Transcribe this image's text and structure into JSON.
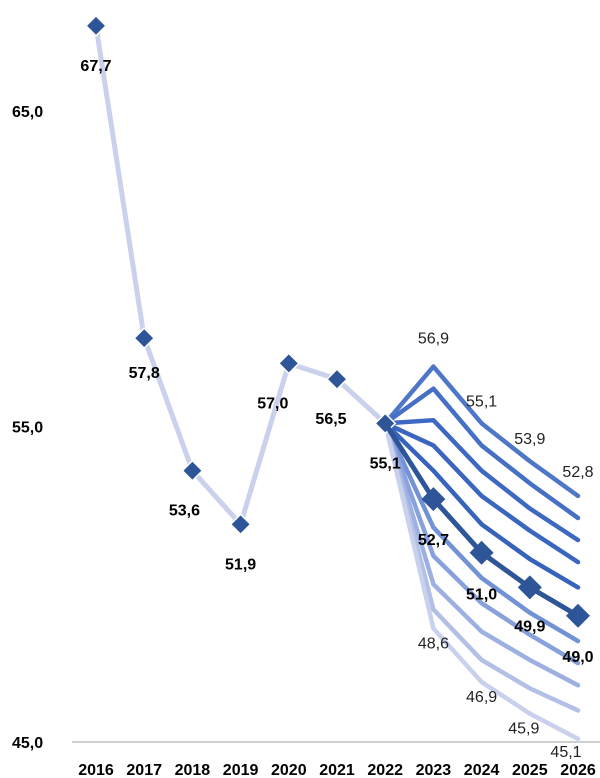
{
  "chart_data": {
    "type": "line",
    "categories": [
      "2016",
      "2017",
      "2018",
      "2019",
      "2020",
      "2021",
      "2022",
      "2023",
      "2024",
      "2025",
      "2026"
    ],
    "y_ticks": [
      "45,0",
      "55,0",
      "65,0"
    ],
    "ylim": [
      45,
      69
    ],
    "grid": false,
    "colors": {
      "history": "#c9d1ec",
      "history_marker": "#2e5597",
      "central": "#2e5597",
      "fan": [
        "#c9d1ec",
        "#b3c0e6",
        "#9db0e2",
        "#88a1dd",
        "#7292d6",
        "#4f77c8",
        "#4670c6",
        "#3e69c2",
        "#3a66c0",
        "#3763bd"
      ]
    },
    "history": {
      "x": [
        "2016",
        "2017",
        "2018",
        "2019",
        "2020",
        "2021",
        "2022"
      ],
      "values": [
        67.7,
        57.8,
        53.6,
        51.9,
        57.0,
        56.5,
        55.1
      ],
      "labels": [
        "67,7",
        "57,8",
        "53,6",
        "51,9",
        "57,0",
        "56,5",
        "55,1"
      ]
    },
    "central": {
      "x": [
        "2022",
        "2023",
        "2024",
        "2025",
        "2026"
      ],
      "values": [
        55.1,
        52.7,
        51.0,
        49.9,
        49.0
      ],
      "labels": [
        "52,7",
        "51,0",
        "49,9",
        "49,0"
      ]
    },
    "fan_upper": {
      "values": [
        [
          55.1,
          56.9,
          55.1,
          53.9,
          52.8
        ],
        [
          55.1,
          56.2,
          54.4,
          53.2,
          52.1
        ],
        [
          55.1,
          55.2,
          53.6,
          52.4,
          51.4
        ],
        [
          55.1,
          54.4,
          52.8,
          51.7,
          50.7
        ],
        [
          55.1,
          53.6,
          51.9,
          50.8,
          49.9
        ]
      ],
      "labels": [
        "56,9",
        "55,1",
        "53,9",
        "52,8"
      ]
    },
    "fan_lower": {
      "values": [
        [
          55.1,
          51.8,
          50.2,
          49.1,
          48.2
        ],
        [
          55.1,
          50.9,
          49.4,
          48.4,
          47.5
        ],
        [
          55.1,
          50.0,
          48.5,
          47.6,
          46.8
        ],
        [
          55.1,
          49.2,
          47.6,
          46.7,
          46.0
        ],
        [
          55.1,
          48.6,
          46.9,
          45.9,
          45.1
        ]
      ],
      "labels": [
        "48,6",
        "46,9",
        "45,9",
        "45,1"
      ]
    }
  }
}
